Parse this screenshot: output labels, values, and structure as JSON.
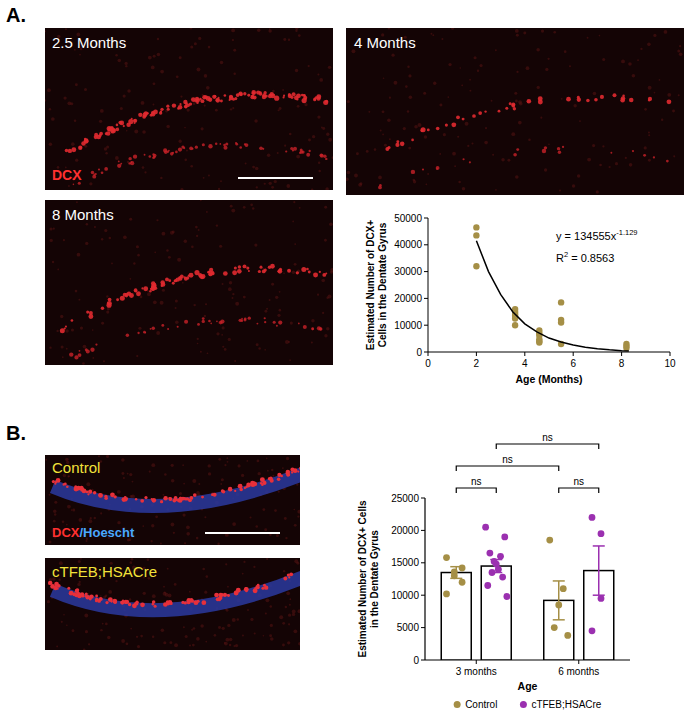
{
  "panel_labels": [
    "A.",
    "B."
  ],
  "images": [
    {
      "label": "2.5 Months",
      "stain": [
        "DCX"
      ]
    },
    {
      "label": "4 Months"
    },
    {
      "label": "8 Months"
    },
    {
      "label": "Control",
      "stain": [
        "DCX",
        "/Hoescht"
      ]
    },
    {
      "label": "cTFEB;HSACre"
    }
  ],
  "chart_data": [
    {
      "type": "scatter",
      "x_label": "Age (Months)",
      "y_label": "Estimated Number of DCX+ Cells in the Dentate Gyrus",
      "xlim": [
        0,
        10
      ],
      "xticks": [
        0,
        2,
        4,
        6,
        8,
        10
      ],
      "ylim": [
        0,
        50000
      ],
      "yticks": [
        0,
        10000,
        20000,
        30000,
        40000,
        50000
      ],
      "grid": false,
      "annotations": [
        [
          "y = 134555x",
          "-1.129"
        ],
        [
          "R",
          "2",
          " = 0.8563"
        ]
      ],
      "series": [
        {
          "type": "scatter",
          "marker": "circle",
          "color": "#a58f46",
          "x": [
            2,
            2,
            2,
            3.6,
            3.6,
            3.6,
            3.6,
            3.6,
            3.6,
            4.6,
            4.6,
            4.6,
            4.6,
            4.6,
            4.6,
            5.5,
            5.5,
            5.5,
            5.5,
            8.2,
            8.2,
            8.2
          ],
          "values": [
            46500,
            43500,
            32000,
            16000,
            15000,
            14200,
            13500,
            12500,
            10000,
            8000,
            7000,
            6200,
            4800,
            4000,
            3500,
            18500,
            12000,
            11000,
            3000,
            3000,
            2200,
            1500
          ]
        },
        {
          "type": "line",
          "line_style": "solid",
          "color": "#000000",
          "x": [
            2,
            2.5,
            3,
            3.5,
            4,
            4.5,
            5,
            5.5,
            6,
            6.5,
            7,
            7.5,
            8,
            8.3
          ],
          "values": [
            41500,
            30000,
            21500,
            15000,
            10500,
            7500,
            5200,
            3700,
            2600,
            1800,
            1200,
            800,
            500,
            400
          ]
        }
      ]
    },
    {
      "type": "bar",
      "x_label": "Age",
      "y_label": "Estimated Number of DCX+ Cells in the Dentate Gyrus",
      "categories": [
        "3 months",
        "6 months"
      ],
      "ylim": [
        0,
        25000
      ],
      "yticks": [
        0,
        5000,
        10000,
        15000,
        20000,
        25000
      ],
      "grid": false,
      "legend": "bottom",
      "series": [
        {
          "name": "Control",
          "color": "#a58f46",
          "values": [
            13500,
            9200
          ],
          "errors": [
            900,
            3000
          ],
          "points": [
            [
              15800,
              14200,
              13600,
              13000,
              12000,
              10200
            ],
            [
              18500,
              11000,
              8500,
              5000,
              3800
            ]
          ]
        },
        {
          "name": "cTFEB;HSACre",
          "color": "#9b30b0",
          "values": [
            14500,
            13800
          ],
          "errors": [
            1000,
            3800
          ],
          "points": [
            [
              20500,
              19000,
              16500,
              16000,
              15200,
              14800,
              14000,
              13500,
              12800,
              11500,
              9800
            ],
            [
              22000,
              19500,
              9500,
              4500
            ]
          ]
        }
      ],
      "comparisons": [
        {
          "label": "ns",
          "from": [
            "Control",
            "3 months"
          ],
          "to": [
            "cTFEB;HSACre",
            "3 months"
          ]
        },
        {
          "label": "ns",
          "from": [
            "Control",
            "6 months"
          ],
          "to": [
            "cTFEB;HSACre",
            "6 months"
          ]
        },
        {
          "label": "ns",
          "from": [
            "Control",
            "3 months"
          ],
          "to": [
            "Control",
            "6 months"
          ]
        },
        {
          "label": "ns",
          "from": [
            "cTFEB;HSACre",
            "3 months"
          ],
          "to": [
            "cTFEB;HSACre",
            "6 months"
          ]
        }
      ]
    }
  ]
}
